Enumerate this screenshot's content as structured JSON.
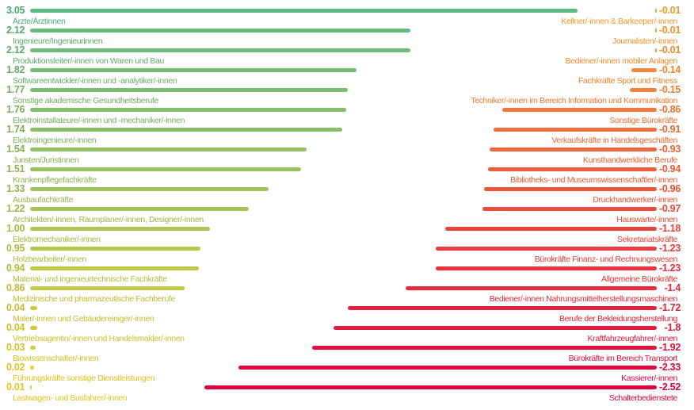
{
  "chart_data": {
    "type": "bar",
    "orientation": "horizontal",
    "layout": "diverging, two columns",
    "title": "",
    "grid": false,
    "xlim": [
      -3.05,
      3.05
    ],
    "positive": {
      "color_start": "#5dba85",
      "color_end": "#e9cd2a",
      "categories": [
        "Ärzte/Ärztinnen",
        "Ingenieure/Ingenieurinnen",
        "Produktionsleiter/-innen von Waren und Bau",
        "Softwareentwickler/-innen und -analytiker/-innen",
        "Sonstige akademische Gesundheitsberufe",
        "Elektroinstallateure/-innen und -mechaniker/-innen",
        "Elektroingenieure/-innen",
        "Juristen/Juristinnen",
        "Krankenpflegefachkräfte",
        "Ausbaufachkräfte",
        "Architekten/-innen, Raumplaner/-innen, Designer/-innen",
        "Elektromechaniker/-innen",
        "Holzbearbeiter/-innen",
        "Material- und ingenieurtechnische Fachkräfte",
        "Medizinische und pharmazeutische Fachberufe",
        "Maler/-innen und Gebäudereiniger/-innen",
        "Vertriebsagentin/-innen und Handelsmakler/-innen",
        "Biowissenschafter/-innen",
        "Führungskräfte sonstige Dienstleistungen",
        "Lastwagen- und Busfahrer/-innen"
      ],
      "labels": [
        "3.05",
        "2.12",
        "2.12",
        "1.82",
        "1.77",
        "1.76",
        "1.74",
        "1.54",
        "1.51",
        "1.33",
        "1.22",
        "1.00",
        "0.95",
        "0.94",
        "0.86",
        "0.04",
        "0.04",
        "0.03",
        "0.02",
        "0.01"
      ],
      "values": [
        3.05,
        2.12,
        2.12,
        1.82,
        1.77,
        1.76,
        1.74,
        1.54,
        1.51,
        1.33,
        1.22,
        1.0,
        0.95,
        0.94,
        0.86,
        0.04,
        0.04,
        0.03,
        0.02,
        0.01
      ]
    },
    "negative": {
      "color_start": "#f6a23c",
      "color_end": "#e0003f",
      "categories": [
        "Kellner/-innen & Barkeeper/-innen",
        "Journalisten/-innen",
        "Bediener/-innen mobiler Anlagen",
        "Fachkräfte Sport und Fitness",
        "Techniker/-innen im Bereich Information und Kommunikation",
        "Sonstige Bürokräfte",
        "Verkaufskräfte in Handelsgeschäften",
        "Kunsthandwerkliche Berufe",
        "Bibliotheks- und Museumswissenschaftler/-innen",
        "Druckhandwerker/-innen",
        "Hauswarte/-innen",
        "Sekretariatskräfte",
        "Bürokräfte Finanz- und Rechnungswesen",
        "Allgemeine Bürokräfte",
        "Bediener/-innen Nahrungsmittelherstellungsmaschinen",
        "Berufe der Bekleidungsherstellung",
        "Kraftfahrzeugfahrer/-innen",
        "Bürokräfte im Bereich Transport",
        "Kassierer/-innen",
        "Schalterbedienstete"
      ],
      "labels": [
        "-0.01",
        "-0.01",
        "-0.01",
        "-0.14",
        "-0.15",
        "-0.86",
        "-0.91",
        "-0.93",
        "-0.94",
        "-0.96",
        "-0.97",
        "-1.18",
        "-1.23",
        "-1.23",
        "-1.4",
        "-1.72",
        "-1.8",
        "-1.92",
        "-2.33",
        "-2.52"
      ],
      "values": [
        -0.01,
        -0.01,
        -0.01,
        -0.14,
        -0.15,
        -0.86,
        -0.91,
        -0.93,
        -0.94,
        -0.96,
        -0.97,
        -1.18,
        -1.23,
        -1.23,
        -1.4,
        -1.72,
        -1.8,
        -1.92,
        -2.33,
        -2.52
      ]
    }
  }
}
